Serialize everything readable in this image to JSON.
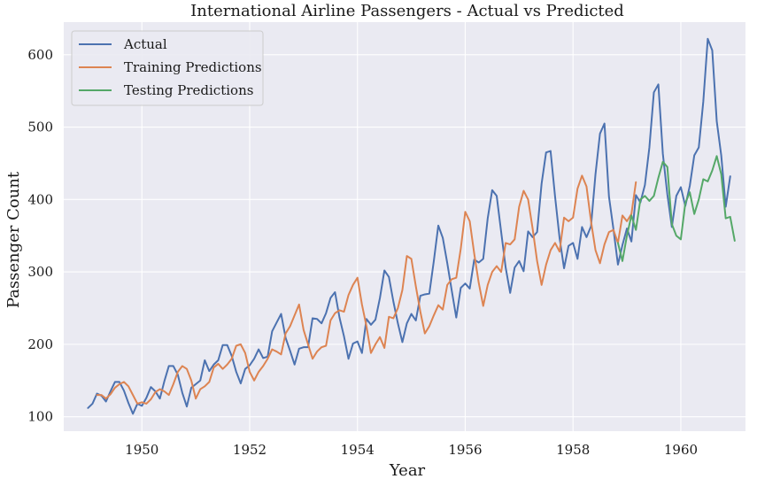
{
  "chart_data": {
    "type": "line",
    "title": "International Airline Passengers - Actual vs Predicted",
    "xlabel": "Year",
    "ylabel": "Passenger Count",
    "xlim": [
      1948.55,
      1961.2
    ],
    "ylim": [
      80,
      645
    ],
    "xticks": [
      1950,
      1952,
      1954,
      1956,
      1958,
      1960
    ],
    "yticks": [
      100,
      200,
      300,
      400,
      500,
      600
    ],
    "grid": true,
    "legend": "top-left",
    "background": "#eaeaf2",
    "series": [
      {
        "name": "Actual",
        "color": "#4c72b0",
        "x_start": 1949.0,
        "x_step": 0.0833333,
        "values": [
          112,
          118,
          132,
          129,
          121,
          135,
          148,
          148,
          136,
          119,
          104,
          118,
          115,
          126,
          141,
          135,
          125,
          149,
          170,
          170,
          158,
          133,
          114,
          140,
          145,
          150,
          178,
          163,
          172,
          178,
          199,
          199,
          184,
          162,
          146,
          166,
          171,
          180,
          193,
          181,
          183,
          218,
          230,
          242,
          209,
          191,
          172,
          194,
          196,
          196,
          236,
          235,
          229,
          243,
          264,
          272,
          237,
          211,
          180,
          201,
          204,
          188,
          235,
          227,
          234,
          264,
          302,
          293,
          259,
          229,
          203,
          229,
          242,
          233,
          267,
          269,
          270,
          315,
          364,
          347,
          312,
          274,
          237,
          278,
          284,
          277,
          317,
          313,
          318,
          374,
          413,
          405,
          355,
          306,
          271,
          306,
          315,
          301,
          356,
          348,
          355,
          422,
          465,
          467,
          404,
          347,
          305,
          336,
          340,
          318,
          362,
          348,
          363,
          435,
          491,
          505,
          404,
          359,
          310,
          337,
          360,
          342,
          406,
          396,
          420,
          472,
          548,
          559,
          463,
          407,
          362,
          405,
          417,
          391,
          419,
          461,
          472,
          535,
          622,
          606,
          508,
          461,
          390,
          432
        ]
      },
      {
        "name": "Training Predictions",
        "color": "#dd8452",
        "x_start": 1949.1667,
        "x_step": 0.0833333,
        "values": [
          130,
          130,
          125,
          131,
          140,
          145,
          148,
          142,
          130,
          118,
          120,
          118,
          124,
          134,
          138,
          135,
          130,
          145,
          162,
          170,
          166,
          150,
          125,
          138,
          142,
          148,
          168,
          173,
          166,
          172,
          180,
          198,
          200,
          188,
          162,
          150,
          162,
          170,
          180,
          193,
          190,
          186,
          215,
          225,
          240,
          255,
          220,
          200,
          180,
          190,
          196,
          198,
          233,
          243,
          247,
          245,
          268,
          282,
          292,
          255,
          225,
          188,
          200,
          210,
          195,
          238,
          236,
          250,
          275,
          322,
          318,
          280,
          245,
          215,
          225,
          240,
          254,
          248,
          282,
          290,
          292,
          332,
          383,
          370,
          325,
          285,
          253,
          282,
          300,
          308,
          300,
          340,
          338,
          345,
          390,
          412,
          400,
          360,
          315,
          282,
          310,
          330,
          340,
          328,
          375,
          370,
          375,
          415,
          433,
          418,
          370,
          330,
          312,
          338,
          355,
          358,
          340,
          378,
          370,
          380,
          424
        ]
      },
      {
        "name": "Testing Predictions",
        "color": "#55a868",
        "x_start": 1958.8333,
        "x_step": 0.0833333,
        "values": [
          340,
          315,
          350,
          378,
          358,
          400,
          405,
          398,
          405,
          430,
          452,
          445,
          366,
          350,
          345,
          395,
          410,
          380,
          400,
          428,
          425,
          440,
          460,
          435,
          374,
          376,
          343
        ]
      }
    ]
  }
}
